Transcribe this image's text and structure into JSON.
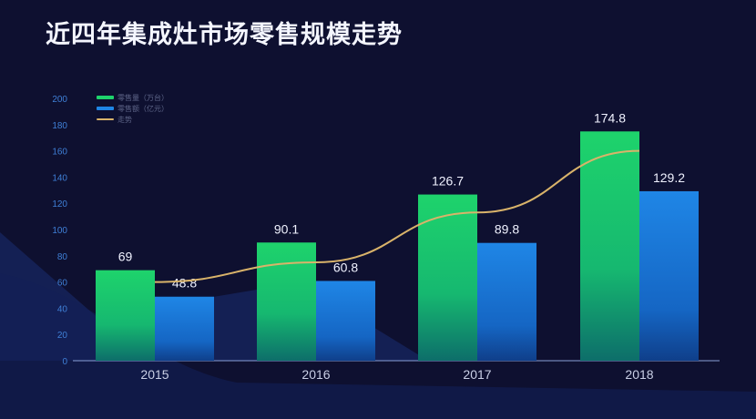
{
  "chart_data": {
    "type": "bar",
    "title": "近四年集成灶市场零售规模走势",
    "categories": [
      "2015",
      "2016",
      "2017",
      "2018"
    ],
    "series": [
      {
        "name": "零售量（万台）",
        "values": [
          69,
          90.1,
          126.7,
          174.8
        ],
        "color": "#1ed36c",
        "kind": "bar"
      },
      {
        "name": "零售额（亿元）",
        "values": [
          48.8,
          60.8,
          89.8,
          129.2
        ],
        "color": "#1f86e6",
        "kind": "bar"
      },
      {
        "name": "走势",
        "values": [
          60,
          75,
          113,
          160
        ],
        "color": "#d9b36a",
        "kind": "line"
      }
    ],
    "yticks": [
      0,
      20,
      40,
      60,
      80,
      100,
      120,
      140,
      160,
      180,
      200
    ],
    "ylim": [
      0,
      200
    ],
    "grid": false,
    "legend": "top-left",
    "data_labels": true
  }
}
